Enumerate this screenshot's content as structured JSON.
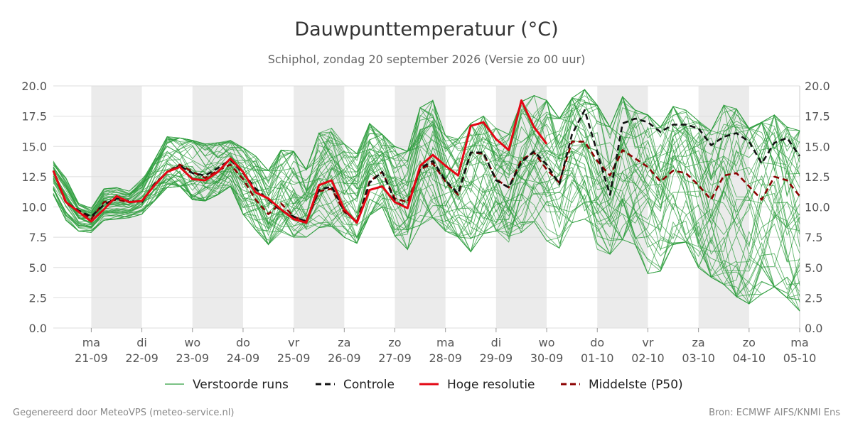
{
  "chart_data": {
    "type": "line",
    "title": "Dauwpunttemperatuur (°C)",
    "subtitle": "Schiphol, zondag 20 september 2026 (Versie zo 00 uur)",
    "ylim": [
      0,
      20
    ],
    "y_ticks": [
      "0.0",
      "2.5",
      "5.0",
      "7.5",
      "10.0",
      "12.5",
      "15.0",
      "17.5",
      "20.0"
    ],
    "x_range_days": [
      -0.75,
      14.0
    ],
    "x_ticks": [
      {
        "day": "ma",
        "date": "21-09"
      },
      {
        "day": "di",
        "date": "22-09"
      },
      {
        "day": "wo",
        "date": "23-09"
      },
      {
        "day": "do",
        "date": "24-09"
      },
      {
        "day": "vr",
        "date": "25-09"
      },
      {
        "day": "za",
        "date": "26-09"
      },
      {
        "day": "zo",
        "date": "27-09"
      },
      {
        "day": "ma",
        "date": "28-09"
      },
      {
        "day": "di",
        "date": "29-09"
      },
      {
        "day": "wo",
        "date": "30-09"
      },
      {
        "day": "do",
        "date": "01-10"
      },
      {
        "day": "vr",
        "date": "02-10"
      },
      {
        "day": "za",
        "date": "03-10"
      },
      {
        "day": "zo",
        "date": "04-10"
      },
      {
        "day": "ma",
        "date": "05-10"
      }
    ],
    "shaded_days": [
      0,
      2,
      4,
      6,
      8,
      10,
      12
    ],
    "grid": true,
    "legend_position": "bottom",
    "x_step_days": 0.25,
    "x_start_day": -0.75,
    "series": [
      {
        "name": "Controle",
        "color": "#111111",
        "style": "dashed",
        "values": [
          13.0,
          10.4,
          9.7,
          9.2,
          10.2,
          10.7,
          10.5,
          10.4,
          11.9,
          12.9,
          13.4,
          12.8,
          12.6,
          13.2,
          13.9,
          12.8,
          11.5,
          10.6,
          9.7,
          9.2,
          8.8,
          11.4,
          11.7,
          9.7,
          8.7,
          12.0,
          12.9,
          10.5,
          9.9,
          13.2,
          13.8,
          12.2,
          11.1,
          14.5,
          14.5,
          12.2,
          11.6,
          13.7,
          14.6,
          13.5,
          11.9,
          16.0,
          18.0,
          14.5,
          11.0,
          16.9,
          17.3,
          17.0,
          16.2,
          16.8,
          16.8,
          16.5,
          15.1,
          15.8,
          16.1,
          15.4,
          13.6,
          15.3,
          15.7,
          14.2
        ]
      },
      {
        "name": "Hoge resolutie",
        "color": "#e30613",
        "style": "solid",
        "values": [
          13.0,
          10.4,
          9.6,
          8.8,
          9.8,
          10.9,
          10.4,
          10.5,
          11.8,
          12.9,
          13.3,
          12.3,
          12.2,
          12.9,
          14.0,
          12.9,
          11.2,
          10.7,
          9.8,
          9.0,
          8.7,
          11.8,
          12.2,
          9.8,
          8.7,
          11.4,
          11.7,
          10.4,
          9.9,
          13.4,
          14.3,
          13.4,
          12.6,
          16.7,
          17.0,
          15.6,
          14.7,
          18.8,
          16.6,
          15.2,
          null,
          null,
          null,
          null,
          null,
          null,
          null,
          null,
          null,
          null,
          null,
          null,
          null,
          null,
          null,
          null,
          null,
          null,
          null,
          null
        ]
      },
      {
        "name": "Middelste (P50)",
        "color": "#8b0000",
        "style": "dashed",
        "values": [
          13.0,
          10.3,
          9.7,
          9.0,
          10.4,
          10.6,
          10.4,
          10.5,
          11.8,
          12.9,
          13.5,
          12.9,
          12.4,
          13.0,
          13.5,
          12.3,
          10.6,
          9.4,
          10.3,
          9.2,
          8.8,
          11.3,
          11.5,
          9.6,
          8.8,
          12.1,
          12.9,
          10.7,
          10.4,
          13.1,
          13.6,
          12.1,
          11.0,
          14.5,
          14.4,
          12.3,
          11.6,
          13.9,
          14.5,
          13.1,
          12.0,
          15.4,
          15.4,
          13.8,
          12.6,
          14.7,
          14.0,
          13.3,
          12.1,
          13.0,
          12.8,
          11.8,
          10.6,
          12.6,
          12.8,
          11.7,
          10.6,
          12.5,
          12.2,
          10.9
        ]
      }
    ],
    "ensemble": {
      "name": "Verstoorde runs",
      "color": "#2e9e3e",
      "members": 50,
      "min_values": [
        11.0,
        8.9,
        8.0,
        7.9,
        8.9,
        9.0,
        9.1,
        9.4,
        10.5,
        11.6,
        11.7,
        10.6,
        10.5,
        11.0,
        11.7,
        9.4,
        8.1,
        6.9,
        7.9,
        7.5,
        7.5,
        8.3,
        8.4,
        7.5,
        7.0,
        9.3,
        10.0,
        7.6,
        6.5,
        8.5,
        9.1,
        8.0,
        7.5,
        6.3,
        7.8,
        8.0,
        7.1,
        7.9,
        8.8,
        7.2,
        6.6,
        8.7,
        9.0,
        6.5,
        6.1,
        7.3,
        6.9,
        4.5,
        4.7,
        6.9,
        7.1,
        5.0,
        4.2,
        3.6,
        2.6,
        2.0,
        2.8,
        3.4,
        2.5,
        1.4
      ],
      "max_values": [
        13.8,
        12.4,
        10.3,
        9.9,
        11.5,
        11.6,
        11.3,
        12.3,
        13.9,
        15.8,
        15.7,
        15.5,
        15.2,
        15.3,
        15.5,
        14.9,
        14.2,
        13.0,
        14.7,
        14.6,
        13.1,
        16.1,
        16.5,
        15.2,
        14.4,
        16.9,
        16.0,
        15.0,
        14.6,
        18.2,
        18.8,
        15.9,
        15.6,
        16.9,
        17.5,
        16.5,
        16.0,
        18.7,
        19.2,
        18.8,
        17.3,
        19.0,
        19.7,
        18.4,
        16.6,
        19.1,
        18.0,
        17.6,
        16.6,
        18.3,
        18.0,
        17.1,
        16.3,
        18.4,
        18.1,
        16.5,
        17.0,
        17.6,
        16.6,
        16.3
      ]
    },
    "legend": [
      {
        "label": "Verstoorde runs",
        "key": "ensemble"
      },
      {
        "label": "Controle",
        "key": "control"
      },
      {
        "label": "Hoge resolutie",
        "key": "hires"
      },
      {
        "label": "Middelste (P50)",
        "key": "p50"
      }
    ]
  },
  "footer": {
    "left": "Gegenereerd door MeteoVPS (meteo-service.nl)",
    "right": "Bron: ECMWF AIFS/KNMI Ens"
  }
}
